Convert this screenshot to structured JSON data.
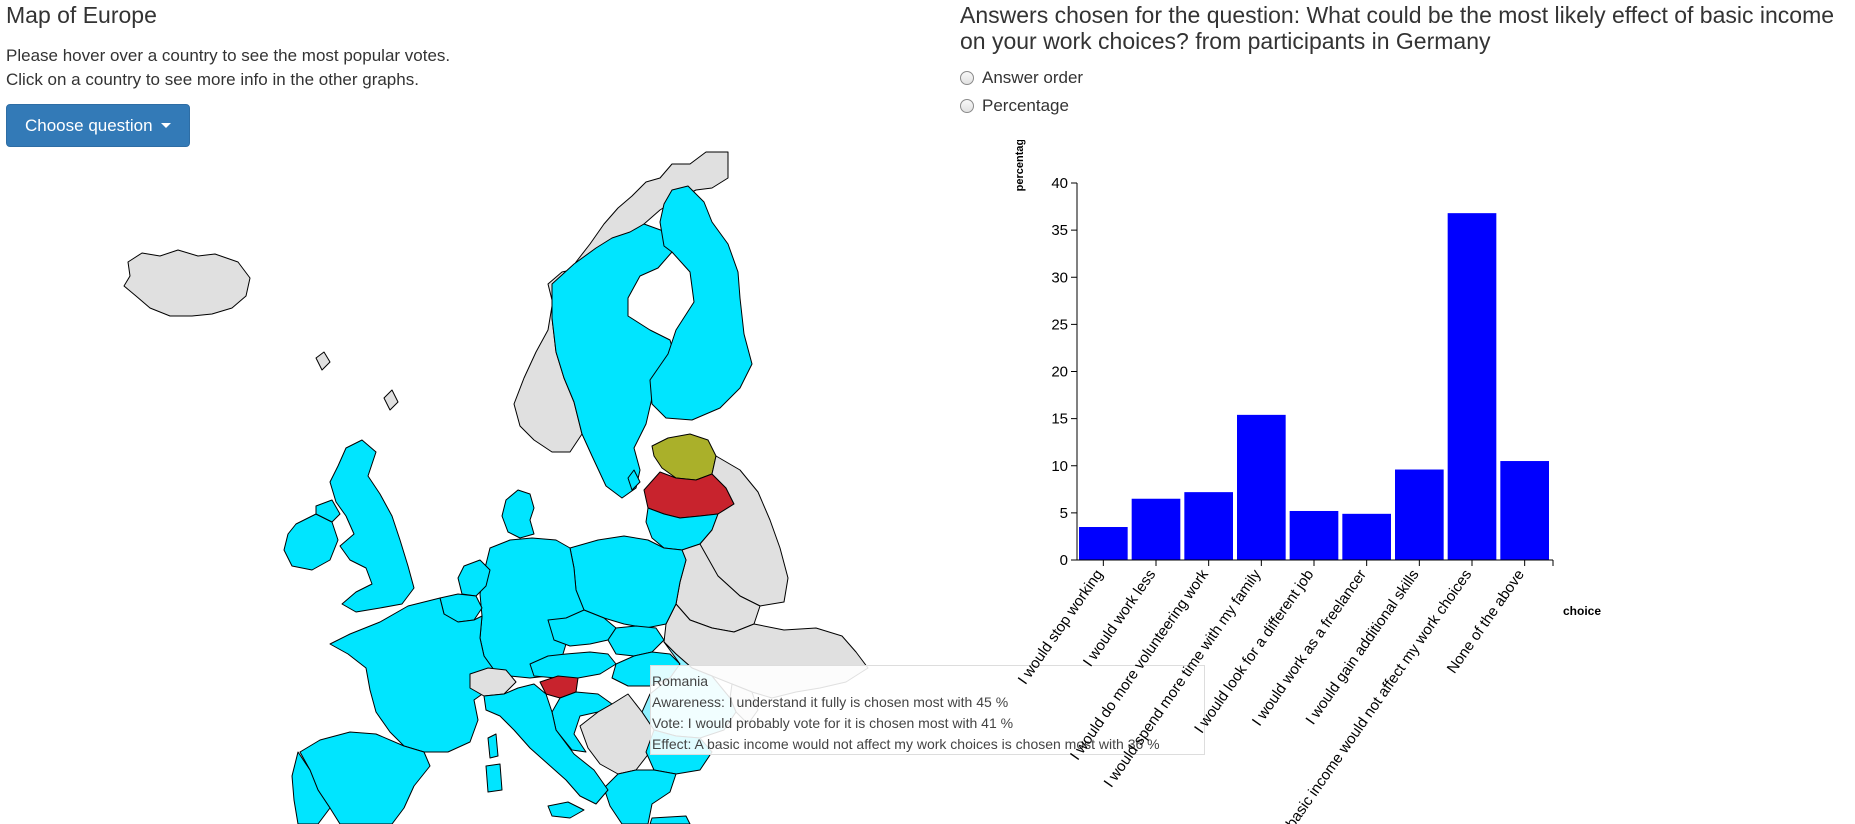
{
  "map_panel": {
    "title": "Map of Europe",
    "instructions": [
      "Please hover over a country to see the most popular votes.",
      "Click on a country to see more info in the other graphs."
    ],
    "question_button": "Choose question",
    "colors": {
      "highlight": "#00e5ff",
      "inactive": "#e0e0e0",
      "hovered": "#8ff0ff",
      "red": "#c8232d",
      "olive": "#aab02a",
      "border": "#000000"
    }
  },
  "tooltip": {
    "country": "Romania",
    "lines": [
      "Awareness: I understand it fully is chosen most with 45 %",
      "Vote: I would probably vote for it is chosen most with 41 %",
      "Effect: A basic income would not affect my work choices is chosen most with 36 %"
    ]
  },
  "chart_panel": {
    "title": "Answers chosen for the question: What could be the most likely effect of basic income on your work choices? from participants in Germany",
    "sort_options": [
      "Answer order",
      "Percentage"
    ]
  },
  "chart_data": {
    "type": "bar",
    "categories": [
      "I would stop working",
      "I would work less",
      "I would do more volunteering work",
      "I would spend more time with my family",
      "I would look for a different job",
      "I would work as a freelancer",
      "I would gain additional skills",
      "A basic income would not affect my work choices",
      "None of the above"
    ],
    "values": [
      3.5,
      6.5,
      7.2,
      15.4,
      5.2,
      4.9,
      9.6,
      36.8,
      10.5
    ],
    "ylabel": "percentage",
    "xlabel": "choice",
    "ylim": [
      0,
      40
    ],
    "yticks": [
      0,
      5,
      10,
      15,
      20,
      25,
      30,
      35,
      40
    ],
    "bar_color": "#0000ff",
    "grid": false
  }
}
